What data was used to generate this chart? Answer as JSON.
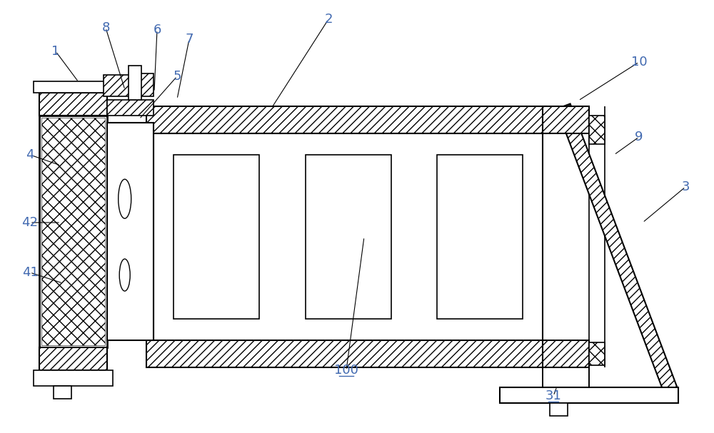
{
  "bg_color": "#ffffff",
  "line_color": "#000000",
  "fig_width": 10.0,
  "fig_height": 6.07,
  "lw": 1.2
}
